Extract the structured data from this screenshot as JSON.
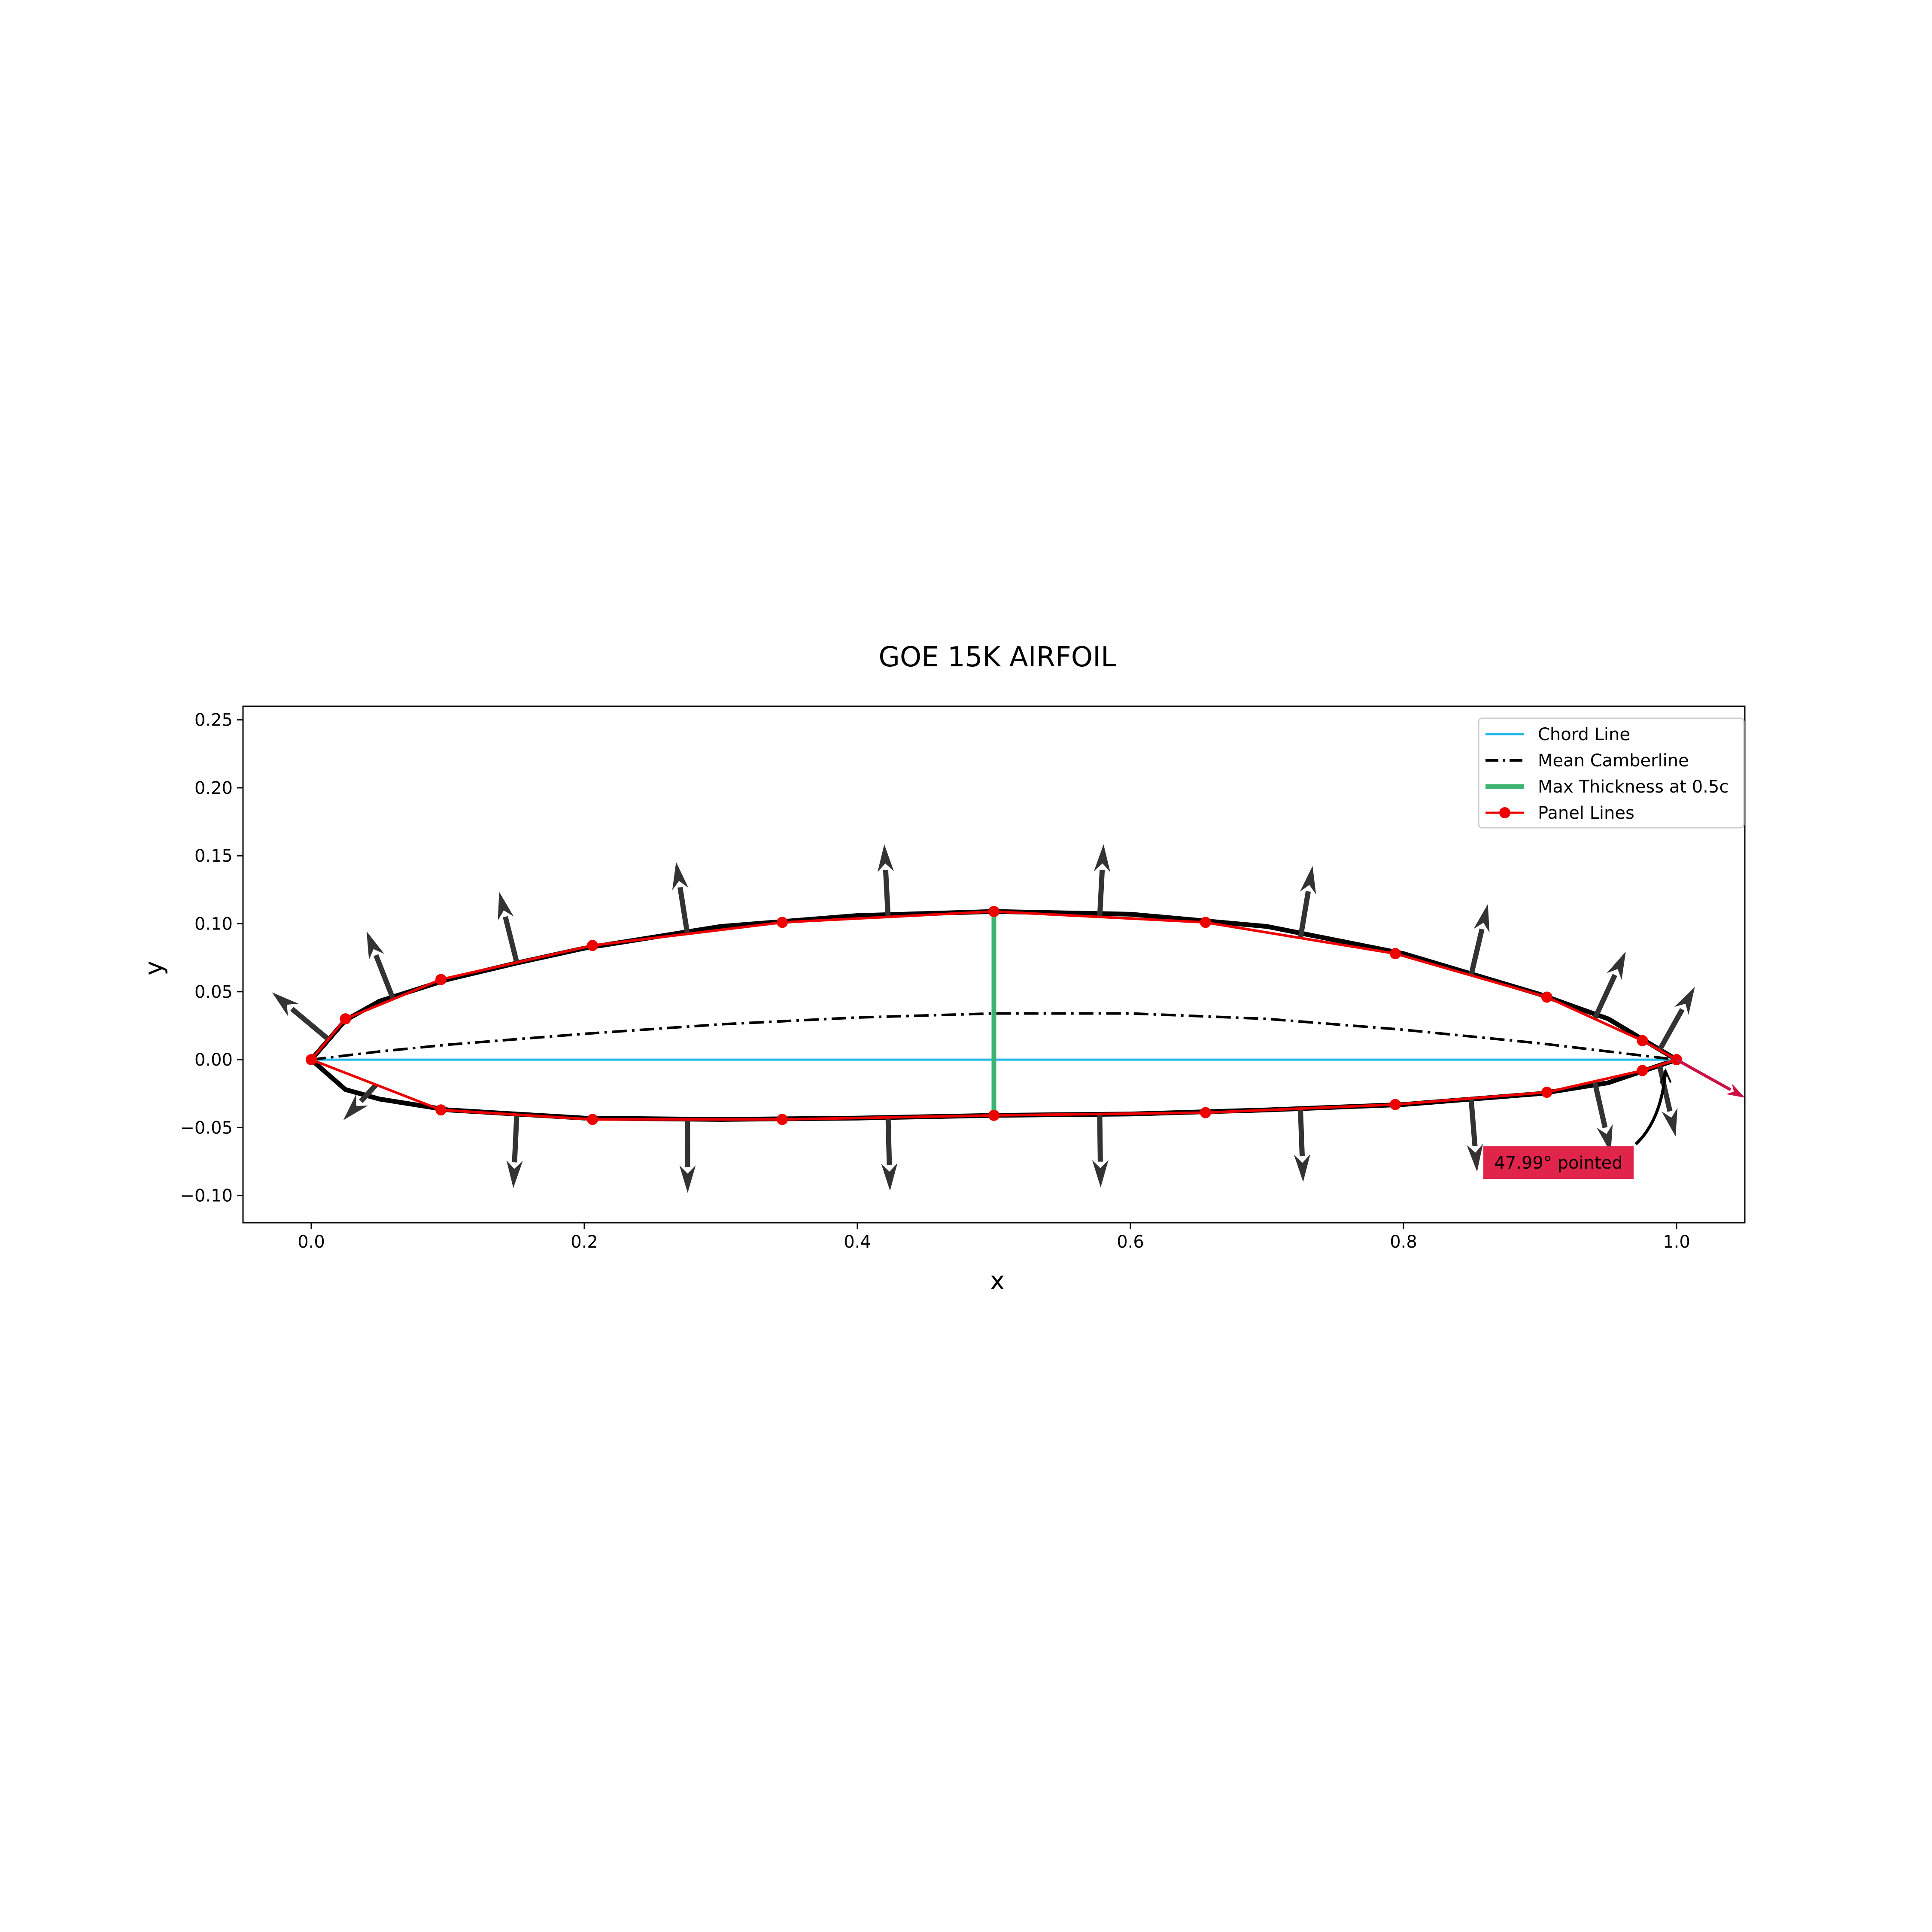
{
  "colors": {
    "chord": "#1fb8e8",
    "camber": "#000000",
    "thickness": "#3cb371",
    "panel": "#ee0000",
    "surface": "#000000",
    "normal_arrow": "#333333",
    "te_arrow": "#cc1144",
    "annotation_box": "#e0244a"
  },
  "chart_data": {
    "type": "line",
    "title": "GOE 15K AIRFOIL",
    "xlabel": "x",
    "ylabel": "y",
    "xlim": [
      -0.05,
      1.05
    ],
    "ylim": [
      -0.12,
      0.26
    ],
    "xticks": [
      0.0,
      0.2,
      0.4,
      0.6,
      0.8,
      1.0
    ],
    "xtick_labels": [
      "0.0",
      "0.2",
      "0.4",
      "0.6",
      "0.8",
      "1.0"
    ],
    "yticks": [
      -0.1,
      -0.05,
      0.0,
      0.05,
      0.1,
      0.15,
      0.2,
      0.25
    ],
    "ytick_labels": [
      "−0.10",
      "−0.05",
      "0.00",
      "0.05",
      "0.10",
      "0.15",
      "0.20",
      "0.25"
    ],
    "grid": false,
    "legend": {
      "position": "upper right",
      "entries": [
        "Chord Line",
        "Mean Camberline",
        "Max Thickness at 0.5c",
        "Panel Lines"
      ]
    },
    "series": [
      {
        "name": "Airfoil Surface",
        "style": "solid-thick",
        "x": [
          1.0,
          0.95,
          0.9,
          0.8,
          0.7,
          0.6,
          0.5,
          0.4,
          0.3,
          0.2,
          0.15,
          0.1,
          0.05,
          0.025,
          0.0,
          0.025,
          0.05,
          0.1,
          0.2,
          0.3,
          0.4,
          0.5,
          0.6,
          0.7,
          0.8,
          0.9,
          0.95,
          1.0
        ],
        "y": [
          0.0,
          0.03,
          0.048,
          0.078,
          0.098,
          0.107,
          0.109,
          0.106,
          0.098,
          0.082,
          0.071,
          0.059,
          0.043,
          0.029,
          0.0,
          -0.022,
          -0.029,
          -0.037,
          -0.043,
          -0.044,
          -0.043,
          -0.041,
          -0.04,
          -0.037,
          -0.033,
          -0.025,
          -0.017,
          0.0
        ]
      },
      {
        "name": "Chord Line",
        "style": "solid",
        "x": [
          0.0,
          1.0
        ],
        "y": [
          0.0,
          0.0
        ]
      },
      {
        "name": "Mean Camberline",
        "style": "dashdot",
        "x": [
          0.0,
          0.05,
          0.1,
          0.2,
          0.3,
          0.4,
          0.5,
          0.6,
          0.7,
          0.8,
          0.9,
          0.95,
          1.0
        ],
        "y": [
          0.0,
          0.006,
          0.011,
          0.019,
          0.026,
          0.031,
          0.034,
          0.034,
          0.03,
          0.022,
          0.012,
          0.006,
          0.0
        ]
      },
      {
        "name": "Max Thickness at 0.5c",
        "style": "solid-thick",
        "x": [
          0.5,
          0.5
        ],
        "y": [
          -0.041,
          0.109
        ]
      },
      {
        "name": "Panel Lines",
        "style": "solid-markers",
        "x": [
          1.0,
          0.975,
          0.905,
          0.794,
          0.655,
          0.5,
          0.345,
          0.206,
          0.095,
          0.025,
          0.0,
          0.095,
          0.206,
          0.345,
          0.5,
          0.655,
          0.794,
          0.905,
          0.975,
          1.0
        ],
        "y": [
          0.0,
          0.014,
          0.046,
          0.078,
          0.101,
          0.109,
          0.101,
          0.084,
          0.059,
          0.03,
          0.0,
          -0.037,
          -0.044,
          -0.044,
          -0.041,
          -0.039,
          -0.033,
          -0.024,
          -0.008,
          0.0
        ]
      }
    ],
    "normal_vectors": [
      {
        "x0": 0.9875,
        "y0": 0.007,
        "x1": 1.0134,
        "y1": 0.0535
      },
      {
        "x0": 0.94,
        "y0": 0.03,
        "x1": 0.9628,
        "y1": 0.0795
      },
      {
        "x0": 0.8495,
        "y0": 0.062,
        "x1": 0.8618,
        "y1": 0.1145
      },
      {
        "x0": 0.7245,
        "y0": 0.0895,
        "x1": 0.7334,
        "y1": 0.1425
      },
      {
        "x0": 0.5775,
        "y0": 0.105,
        "x1": 0.5803,
        "y1": 0.1585
      },
      {
        "x0": 0.4225,
        "y0": 0.105,
        "x1": 0.4197,
        "y1": 0.1585
      },
      {
        "x0": 0.2755,
        "y0": 0.0925,
        "x1": 0.2672,
        "y1": 0.1455
      },
      {
        "x0": 0.1505,
        "y0": 0.0715,
        "x1": 0.1376,
        "y1": 0.1235
      },
      {
        "x0": 0.06,
        "y0": 0.0445,
        "x1": 0.0405,
        "y1": 0.0945
      },
      {
        "x0": 0.0125,
        "y0": 0.015,
        "x1": -0.0287,
        "y1": 0.0495
      },
      {
        "x0": 0.0475,
        "y0": -0.0185,
        "x1": 0.0235,
        "y1": -0.0445
      },
      {
        "x0": 0.1505,
        "y0": -0.0405,
        "x1": 0.148,
        "y1": -0.0945
      },
      {
        "x0": 0.2755,
        "y0": -0.044,
        "x1": 0.2757,
        "y1": -0.098
      },
      {
        "x0": 0.4225,
        "y0": -0.0425,
        "x1": 0.4239,
        "y1": -0.0965
      },
      {
        "x0": 0.5775,
        "y0": -0.04,
        "x1": 0.5782,
        "y1": -0.094
      },
      {
        "x0": 0.7245,
        "y0": -0.036,
        "x1": 0.7265,
        "y1": -0.09
      },
      {
        "x0": 0.8495,
        "y0": -0.0285,
        "x1": 0.8539,
        "y1": -0.0825
      },
      {
        "x0": 0.94,
        "y0": -0.016,
        "x1": 0.9518,
        "y1": -0.0685
      },
      {
        "x0": 0.9875,
        "y0": -0.004,
        "x1": 0.9993,
        "y1": -0.0565
      }
    ],
    "bisector_arrow": {
      "x0": 1.0,
      "y0": 0.0,
      "x1": 1.05,
      "y1": -0.028
    },
    "annotation": {
      "text": "47.99° pointed",
      "x": 0.9025,
      "y": -0.0725,
      "arrow_to": {
        "x": 0.992,
        "y": -0.008
      }
    }
  }
}
